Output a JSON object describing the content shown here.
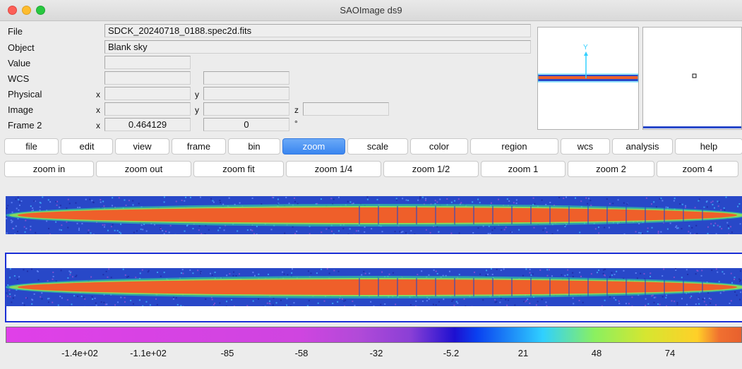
{
  "window": {
    "title": "SAOImage ds9"
  },
  "info": {
    "file_label": "File",
    "file_value": "SDCK_20240718_0188.spec2d.fits",
    "object_label": "Object",
    "object_value": "Blank sky",
    "value_label": "Value",
    "value_value": "",
    "wcs_label": "WCS",
    "wcs_value1": "",
    "wcs_value2": "",
    "physical_label": "Physical",
    "physical_x_label": "x",
    "physical_x": "",
    "physical_y_label": "y",
    "physical_y": "",
    "image_label": "Image",
    "image_x_label": "x",
    "image_x": "",
    "image_y_label": "y",
    "image_y": "",
    "image_z_label": "z",
    "image_z": "",
    "frame_label": "Frame 2",
    "frame_x_label": "x",
    "frame_x": "0.464129",
    "frame_y": "0",
    "frame_unit": "°"
  },
  "panner": {
    "axis_label": "Y"
  },
  "menu": [
    "file",
    "edit",
    "view",
    "frame",
    "bin",
    "zoom",
    "scale",
    "color",
    "region",
    "wcs",
    "analysis",
    "help"
  ],
  "menu_active": "zoom",
  "buttons": [
    "zoom in",
    "zoom out",
    "zoom fit",
    "zoom 1/4",
    "zoom 1/2",
    "zoom 1",
    "zoom 2",
    "zoom 4"
  ],
  "colorbar": {
    "ticks": [
      "-1.4e+02",
      "-1.1e+02",
      "-85",
      "-58",
      "-32",
      "-5.2",
      "21",
      "48",
      "74"
    ],
    "colors": [
      "#e040e8",
      "#cf45e0",
      "#b14ad8",
      "#8a3fd6",
      "#1d10d0",
      "#0a40f0",
      "#30d0ff",
      "#8af060",
      "#d6e630",
      "#ffd028",
      "#f07030",
      "#e8602e"
    ]
  },
  "image_colors": {
    "background": "#2848c8",
    "core": "#ef5f2a",
    "halo": "#2fd0a0",
    "edge": "#9be84a"
  }
}
